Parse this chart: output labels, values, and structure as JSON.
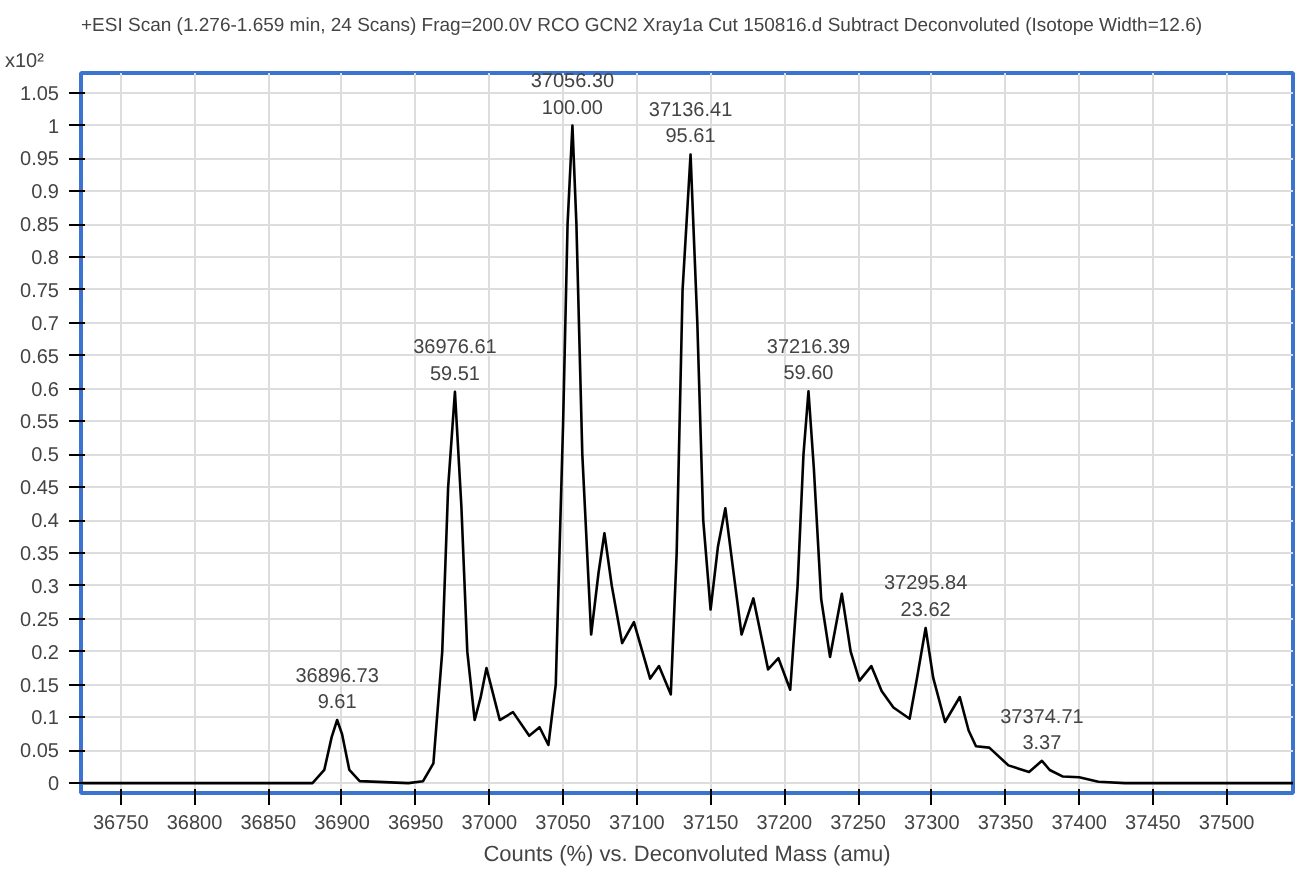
{
  "chart_data": {
    "type": "line",
    "title": "+ESI Scan (1.276-1.659 min, 24 Scans) Frag=200.0V RCO GCN2 Xray1a Cut 150816.d  Subtract Deconvoluted (Isotope Width=12.6)",
    "xlabel": "Counts (%) vs. Deconvoluted Mass (amu)",
    "ylabel": "x10²",
    "xlim": [
      36723,
      37545
    ],
    "ylim": [
      -0.015,
      1.08
    ],
    "xticks": [
      36750,
      36800,
      36850,
      36900,
      36950,
      37000,
      37050,
      37100,
      37150,
      37200,
      37250,
      37300,
      37350,
      37400,
      37450,
      37500
    ],
    "yticks": [
      0,
      0.05,
      0.1,
      0.15,
      0.2,
      0.25,
      0.3,
      0.35,
      0.4,
      0.45,
      0.5,
      0.55,
      0.6,
      0.65,
      0.7,
      0.75,
      0.8,
      0.85,
      0.9,
      0.95,
      1,
      1.05
    ],
    "grid": true,
    "marker": "none",
    "line_style": "solid",
    "series": [
      {
        "color": "#000000",
        "x": [
          36723,
          36880,
          36888,
          36893,
          36896.73,
          36900,
          36905,
          36912,
          36945,
          36955,
          36962,
          36968,
          36972,
          36976.61,
          36981,
          36985,
          36990,
          36994,
          36998,
          37002,
          37007,
          37016,
          37027,
          37034,
          37040,
          37045,
          37050,
          37053,
          37056.3,
          37059,
          37063,
          37069,
          37074,
          37078,
          37083,
          37090,
          37098,
          37109,
          37115,
          37123,
          37127,
          37131,
          37136.41,
          37141,
          37145,
          37150,
          37155,
          37160,
          37165,
          37171,
          37179,
          37189,
          37196,
          37204,
          37209,
          37213,
          37216.39,
          37220,
          37225,
          37231,
          37239,
          37245,
          37251,
          37259,
          37266,
          37274,
          37285,
          37290,
          37295.84,
          37301,
          37309,
          37319,
          37325,
          37330,
          37339,
          37352,
          37366,
          37374.71,
          37380,
          37389,
          37400,
          37413,
          37431,
          37545
        ],
        "values": [
          0,
          0,
          0.02,
          0.07,
          0.096,
          0.075,
          0.02,
          0.003,
          0,
          0.003,
          0.03,
          0.2,
          0.45,
          0.595,
          0.42,
          0.2,
          0.096,
          0.13,
          0.175,
          0.14,
          0.096,
          0.108,
          0.072,
          0.085,
          0.058,
          0.15,
          0.55,
          0.85,
          1.0,
          0.85,
          0.5,
          0.226,
          0.32,
          0.38,
          0.3,
          0.213,
          0.245,
          0.159,
          0.178,
          0.135,
          0.35,
          0.75,
          0.956,
          0.7,
          0.4,
          0.264,
          0.36,
          0.418,
          0.33,
          0.226,
          0.281,
          0.173,
          0.19,
          0.142,
          0.3,
          0.5,
          0.596,
          0.48,
          0.28,
          0.192,
          0.288,
          0.2,
          0.156,
          0.178,
          0.14,
          0.115,
          0.098,
          0.16,
          0.236,
          0.16,
          0.093,
          0.131,
          0.08,
          0.056,
          0.054,
          0.027,
          0.017,
          0.034,
          0.02,
          0.01,
          0.009,
          0.002,
          0,
          0
        ]
      }
    ],
    "annotations": [
      {
        "text": "36896.73\n9.61",
        "x": 36896.73,
        "y": 0.0961
      },
      {
        "text": "36976.61\n59.51",
        "x": 36976.61,
        "y": 0.5951
      },
      {
        "text": "37056.30\n100.00",
        "x": 37056.3,
        "y": 1.0
      },
      {
        "text": "37136.41\n95.61",
        "x": 37136.41,
        "y": 0.9561
      },
      {
        "text": "37216.39\n59.60",
        "x": 37216.39,
        "y": 0.596
      },
      {
        "text": "37295.84\n23.62",
        "x": 37295.84,
        "y": 0.2362
      },
      {
        "text": "37374.71\n3.37",
        "x": 37374.71,
        "y": 0.0337
      }
    ]
  }
}
